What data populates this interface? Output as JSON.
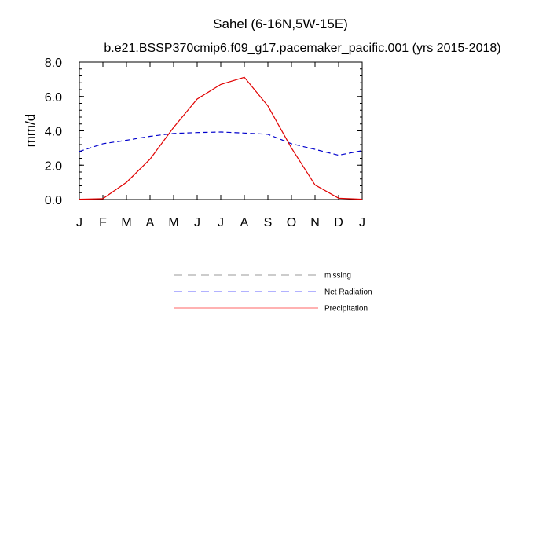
{
  "chart_data": {
    "type": "line",
    "title": "Sahel (6-16N,5W-15E)",
    "subtitle": "b.e21.BSSP370cmip6.f09_g17.pacemaker_pacific.001 (yrs 2015-2018)",
    "xlabel": "",
    "ylabel": "mm/d",
    "ylim": [
      0,
      8
    ],
    "yticks": [
      "0.0",
      "2.0",
      "4.0",
      "6.0",
      "8.0"
    ],
    "categories": [
      "J",
      "F",
      "M",
      "A",
      "M",
      "J",
      "J",
      "A",
      "S",
      "O",
      "N",
      "D",
      "J"
    ],
    "series": [
      {
        "name": "Net Radiation",
        "color": "#0000cc",
        "dash": "dashed",
        "values": [
          2.8,
          3.25,
          3.45,
          3.68,
          3.85,
          3.9,
          3.93,
          3.87,
          3.8,
          3.25,
          2.92,
          2.58,
          2.85
        ]
      },
      {
        "name": "Precipitation",
        "color": "#e00000",
        "dash": "solid",
        "values": [
          0.02,
          0.05,
          1.0,
          2.35,
          4.2,
          5.85,
          6.7,
          7.12,
          5.45,
          3.0,
          0.85,
          0.08,
          0.02
        ]
      }
    ],
    "legend": {
      "position": "below",
      "entries": [
        {
          "label": "missing",
          "color": "#999999",
          "dash": "dashed"
        },
        {
          "label": "Net Radiation",
          "color": "#6666ff",
          "dash": "dashed"
        },
        {
          "label": "Precipitation",
          "color": "#ff6666",
          "dash": "solid"
        }
      ]
    }
  }
}
